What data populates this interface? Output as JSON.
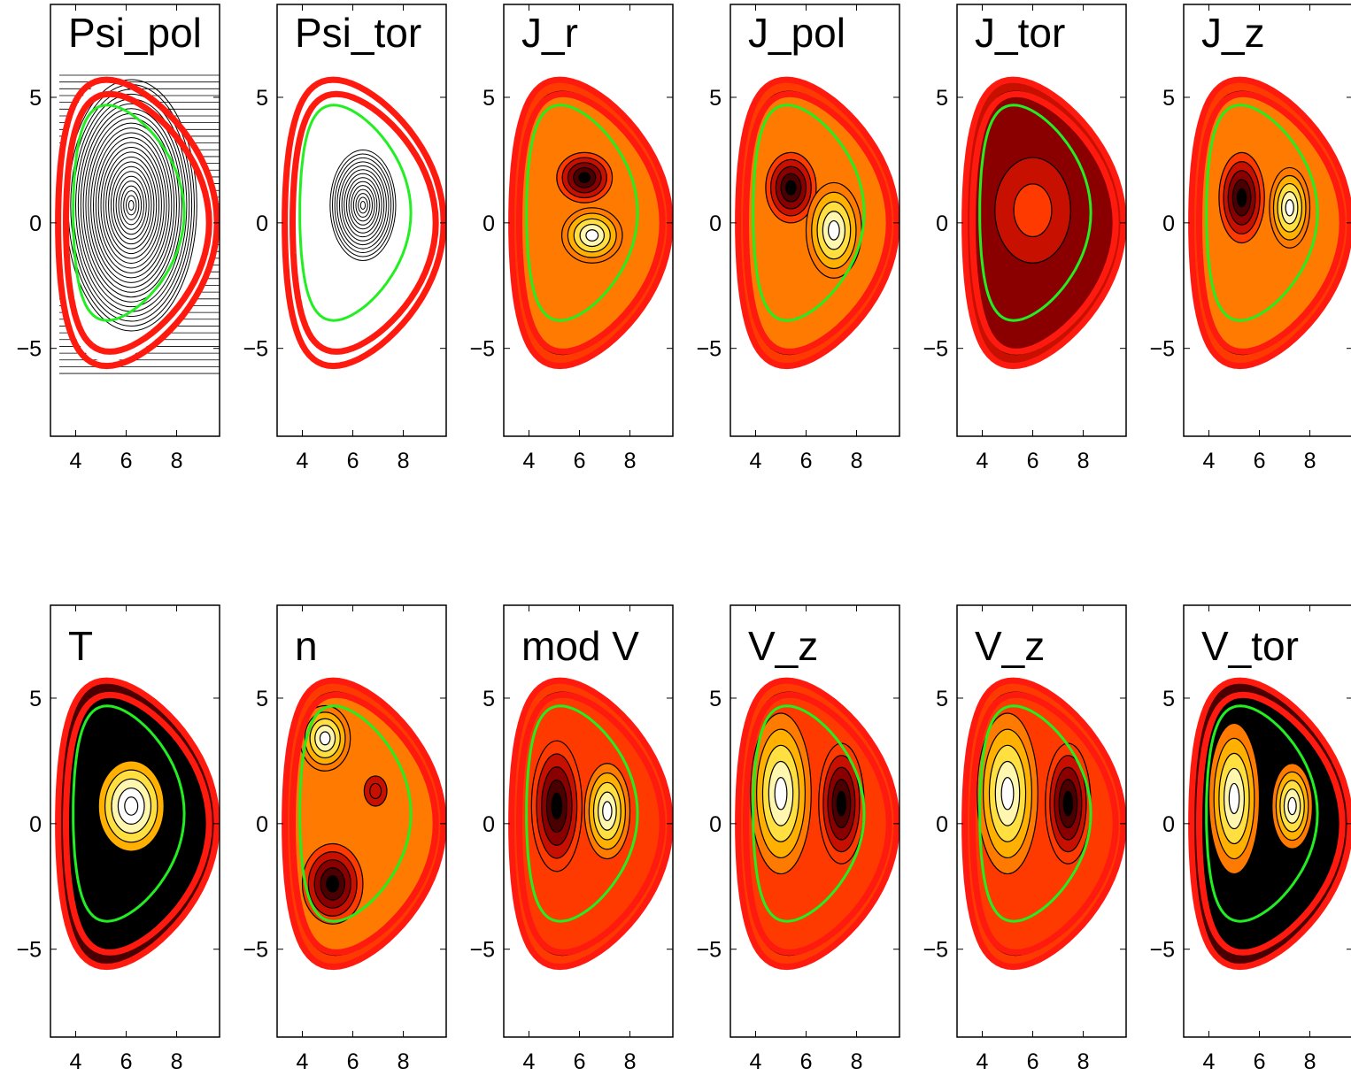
{
  "chart_data": [
    {
      "type": "contour",
      "title": "Psi_pol",
      "xlim": [
        3,
        9.7
      ],
      "ylim": [
        -8.5,
        8.7
      ],
      "xticks": [
        4,
        6,
        8
      ],
      "yticks": [
        {
          "value": -5,
          "label": "−5"
        },
        0,
        5
      ]
    },
    {
      "type": "contour",
      "title": "Psi_tor",
      "xlim": [
        3,
        9.7
      ],
      "ylim": [
        -8.5,
        8.7
      ],
      "xticks": [
        4,
        6,
        8
      ],
      "yticks": [
        {
          "value": -5,
          "label": "−5"
        },
        0,
        5
      ]
    },
    {
      "type": "contour",
      "title": "J_r",
      "xlim": [
        3,
        9.7
      ],
      "ylim": [
        -8.5,
        8.7
      ],
      "xticks": [
        4,
        6,
        8
      ],
      "yticks": [
        {
          "value": -5,
          "label": "−5"
        },
        0,
        5
      ]
    },
    {
      "type": "contour",
      "title": "J_pol",
      "xlim": [
        3,
        9.7
      ],
      "ylim": [
        -8.5,
        8.7
      ],
      "xticks": [
        4,
        6,
        8
      ],
      "yticks": [
        {
          "value": -5,
          "label": "−5"
        },
        0,
        5
      ]
    },
    {
      "type": "contour",
      "title": "J_tor",
      "xlim": [
        3,
        9.7
      ],
      "ylim": [
        -8.5,
        8.7
      ],
      "xticks": [
        4,
        6,
        8
      ],
      "yticks": [
        {
          "value": -5,
          "label": "−5"
        },
        0,
        5
      ]
    },
    {
      "type": "contour",
      "title": "J_z",
      "xlim": [
        3,
        9.7
      ],
      "ylim": [
        -8.5,
        8.7
      ],
      "xticks": [
        4,
        6,
        8
      ],
      "yticks": [
        {
          "value": -5,
          "label": "−5"
        },
        0,
        5
      ]
    },
    {
      "type": "contour",
      "title": "T",
      "xlim": [
        3,
        9.7
      ],
      "ylim": [
        -8.5,
        8.7
      ],
      "xticks": [
        4,
        6,
        8
      ],
      "yticks": [
        {
          "value": -5,
          "label": "−5"
        },
        0,
        5
      ]
    },
    {
      "type": "contour",
      "title": "n",
      "xlim": [
        3,
        9.7
      ],
      "ylim": [
        -8.5,
        8.7
      ],
      "xticks": [
        4,
        6,
        8
      ],
      "yticks": [
        {
          "value": -5,
          "label": "−5"
        },
        0,
        5
      ]
    },
    {
      "type": "contour",
      "title": "mod V",
      "xlim": [
        3,
        9.7
      ],
      "ylim": [
        -8.5,
        8.7
      ],
      "xticks": [
        4,
        6,
        8
      ],
      "yticks": [
        {
          "value": -5,
          "label": "−5"
        },
        0,
        5
      ]
    },
    {
      "type": "contour",
      "title": "V_z",
      "xlim": [
        3,
        9.7
      ],
      "ylim": [
        -8.5,
        8.7
      ],
      "xticks": [
        4,
        6,
        8
      ],
      "yticks": [
        {
          "value": -5,
          "label": "−5"
        },
        0,
        5
      ]
    },
    {
      "type": "contour",
      "title": "V_z",
      "xlim": [
        3,
        9.7
      ],
      "ylim": [
        -8.5,
        8.7
      ],
      "xticks": [
        4,
        6,
        8
      ],
      "yticks": [
        {
          "value": -5,
          "label": "−5"
        },
        0,
        5
      ]
    },
    {
      "type": "contour",
      "title": "V_tor",
      "xlim": [
        3,
        9.7
      ],
      "ylim": [
        -8.5,
        8.7
      ],
      "xticks": [
        4,
        6,
        8
      ],
      "yticks": [
        {
          "value": -5,
          "label": "−5"
        },
        0,
        5
      ]
    }
  ]
}
